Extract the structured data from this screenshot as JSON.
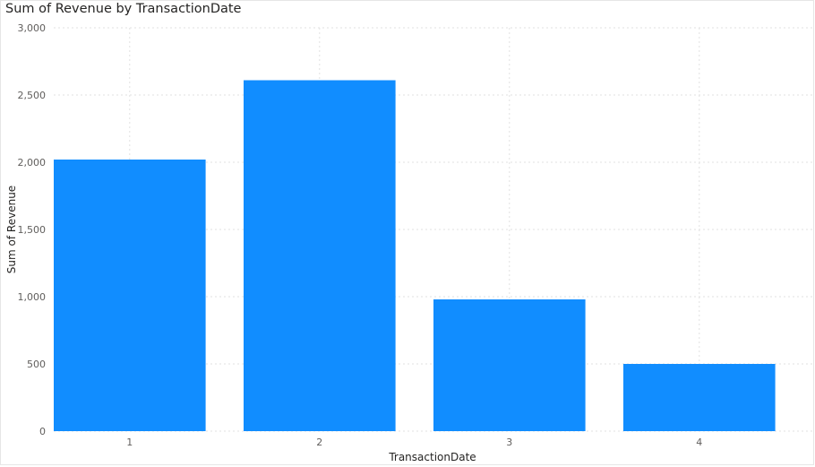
{
  "chart_data": {
    "type": "bar",
    "title": "Sum of Revenue by TransactionDate",
    "xlabel": "TransactionDate",
    "ylabel": "Sum of Revenue",
    "categories": [
      "1",
      "2",
      "3",
      "4"
    ],
    "values": [
      2020,
      2610,
      980,
      500
    ],
    "ylim": [
      0,
      3000
    ],
    "yticks": [
      0,
      500,
      1000,
      1500,
      2000,
      2500,
      3000
    ],
    "ytick_labels": [
      "0",
      "500",
      "1,000",
      "1,500",
      "2,000",
      "2,500",
      "3,000"
    ],
    "grid": true,
    "legend": "none",
    "bar_color": "#118DFF",
    "grid_color": "#e1e1e1"
  }
}
